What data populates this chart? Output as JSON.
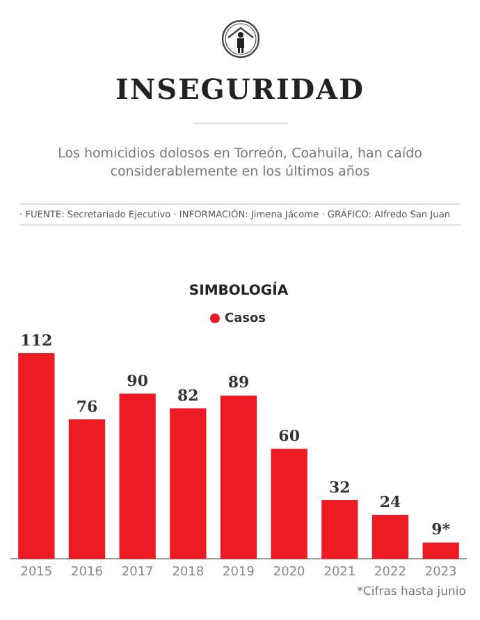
{
  "chart_data": {
    "type": "bar",
    "title": "INSEGURIDAD",
    "subtitle": "Los homicidios dolosos en Torreón, Coahuila, han caído considerablemente en los últimos años",
    "annotations": [
      "· FUENTE: Secretariado Ejecutivo · INFORMACIÓN: Jimena Jácome · GRÁFICO: Alfredo San Juan",
      "*Cifras hasta junio"
    ],
    "legend_title": "SIMBOLOGÍA",
    "legend": "top",
    "categories": [
      "2015",
      "2016",
      "2017",
      "2018",
      "2019",
      "2020",
      "2021",
      "2022",
      "2023"
    ],
    "series": [
      {
        "name": "Casos",
        "color": "#ed1c24",
        "values": [
          112,
          76,
          90,
          82,
          89,
          60,
          32,
          24,
          9
        ],
        "value_labels": [
          "112",
          "76",
          "90",
          "82",
          "89",
          "60",
          "32",
          "24",
          "9*"
        ]
      }
    ],
    "grid": false
  }
}
